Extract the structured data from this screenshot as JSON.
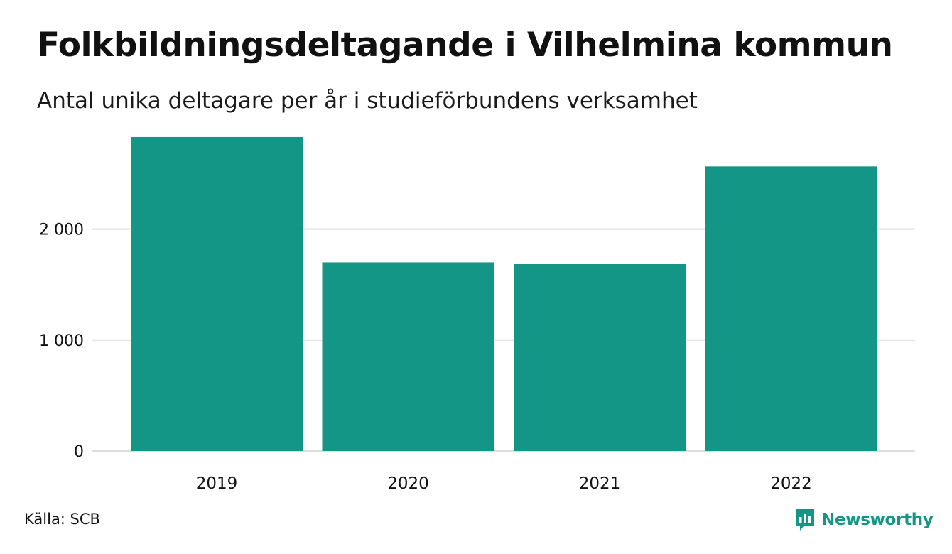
{
  "title": "Folkbildningsdeltagande i Vilhelmina kommun",
  "subtitle": "Antal unika deltagare per år i studieförbundens verksamhet",
  "source": "Källa: SCB",
  "brand": {
    "name": "Newsworthy",
    "icon": "newsworthy-logo-icon"
  },
  "colors": {
    "bar": "#149687",
    "grid": "#dddddd",
    "brand": "#149687",
    "text": "#111111"
  },
  "chart_data": {
    "type": "bar",
    "categories": [
      "2019",
      "2020",
      "2021",
      "2022"
    ],
    "values": [
      2830,
      1700,
      1685,
      2565
    ],
    "ylim": [
      0,
      2900
    ],
    "yticks": [
      0,
      1000,
      2000
    ],
    "ytick_labels": [
      "0",
      "1 000",
      "2 000"
    ],
    "grid": true,
    "xlabel": "",
    "ylabel": ""
  }
}
